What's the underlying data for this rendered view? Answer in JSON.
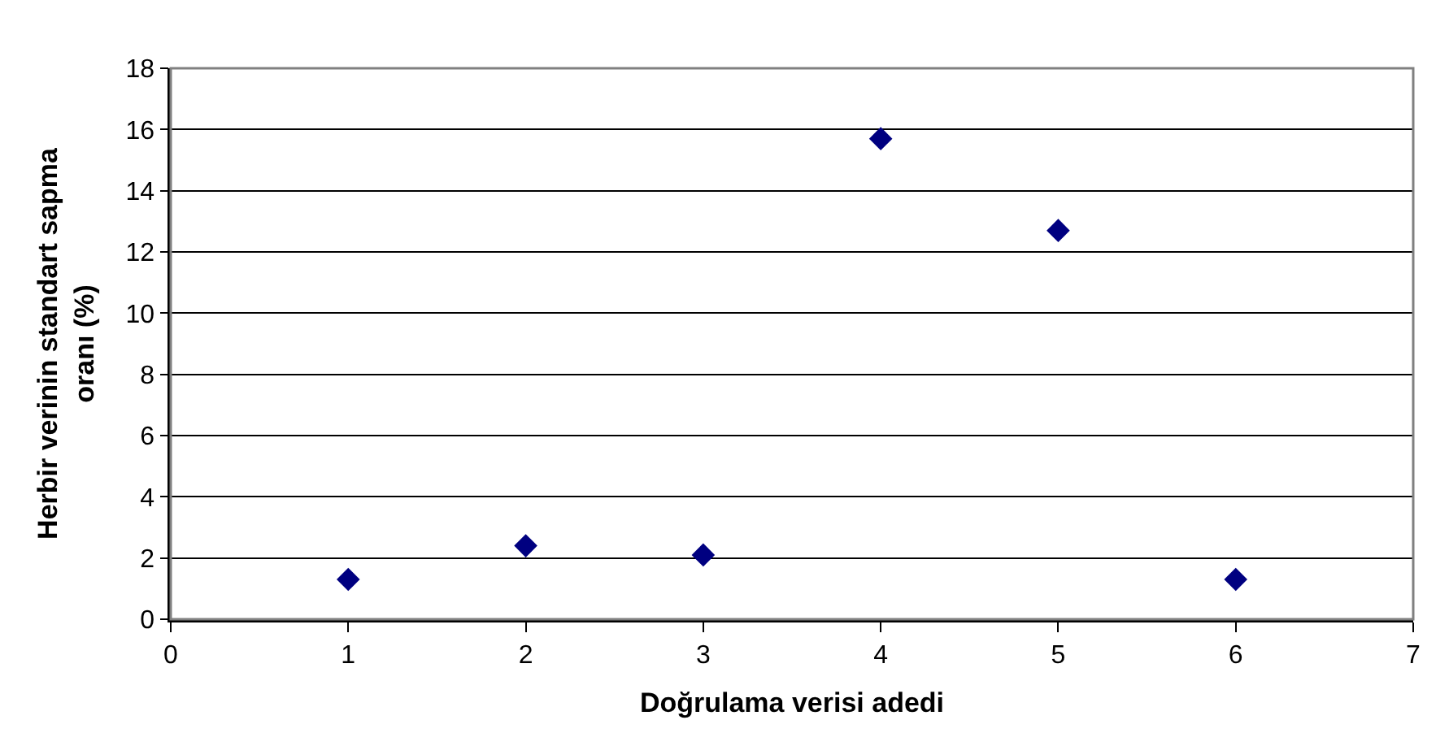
{
  "chart_data": {
    "type": "scatter",
    "xlabel": "Doğrulama verisi adedi",
    "ylabel": "Herbir verinin standart sapma oranı (%)",
    "x": [
      1,
      2,
      3,
      4,
      5,
      6
    ],
    "series": [
      {
        "color": "#000080",
        "values": [
          1.3,
          2.4,
          2.1,
          15.7,
          12.7,
          1.3
        ]
      }
    ],
    "xlim": [
      0,
      7
    ],
    "xticks": [
      0,
      1,
      2,
      3,
      4,
      5,
      6,
      7
    ],
    "ylim": [
      0,
      18
    ],
    "yticks": [
      0,
      2,
      4,
      6,
      8,
      10,
      12,
      14,
      16,
      18
    ],
    "grid": "y",
    "marker": "diamond",
    "legend": false
  }
}
